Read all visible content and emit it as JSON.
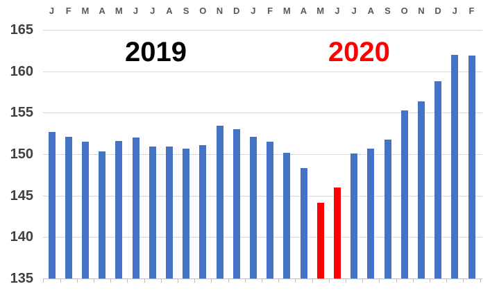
{
  "chart_data": {
    "type": "bar",
    "title": "",
    "xlabel": "",
    "ylabel": "",
    "categories": [
      "J",
      "F",
      "M",
      "A",
      "M",
      "J",
      "J",
      "A",
      "S",
      "O",
      "N",
      "D",
      "J",
      "F",
      "M",
      "A",
      "M",
      "J",
      "J",
      "A",
      "S",
      "O",
      "N",
      "D",
      "J",
      "F"
    ],
    "values": [
      152.7,
      152.1,
      151.5,
      150.3,
      151.6,
      152.0,
      150.9,
      150.9,
      150.7,
      151.1,
      153.4,
      153.0,
      152.1,
      151.5,
      150.2,
      148.3,
      144.1,
      146.0,
      150.1,
      150.7,
      151.8,
      155.3,
      156.4,
      158.8,
      162.0,
      161.9
    ],
    "ylim": [
      135,
      165
    ],
    "yticks": [
      135,
      140,
      145,
      150,
      155,
      160,
      165
    ],
    "grid": "horizontal",
    "legend": "none",
    "default_bar_color": "#4472c4",
    "highlight_bar_color": "#ff0000",
    "highlight_indices": [
      16,
      17
    ],
    "annotations": [
      {
        "text": "2019",
        "color": "#000000",
        "anchor_index": 6.2
      },
      {
        "text": "2020",
        "color": "#ff0000",
        "anchor_index": 18.3
      }
    ]
  },
  "colors": {
    "gridline": "#d9d9d9",
    "axis": "#bfbfbf",
    "month_label": "#595959",
    "ytick_label": "#404040",
    "background": "#ffffff"
  }
}
